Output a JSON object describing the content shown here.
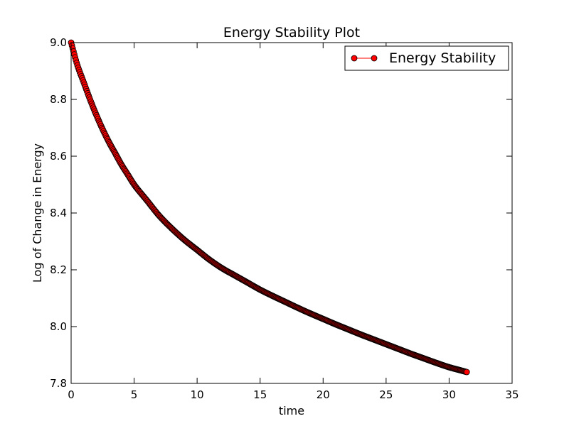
{
  "chart_data": {
    "type": "scatter",
    "title": "Energy Stability Plot",
    "xlabel": "time",
    "ylabel": "Log of Change in Energy",
    "xlim": [
      0,
      35
    ],
    "ylim": [
      7.8,
      9.0
    ],
    "xticks": [
      0,
      5,
      10,
      15,
      20,
      25,
      30,
      35
    ],
    "yticks": [
      7.8,
      8.0,
      8.2,
      8.4,
      8.6,
      8.8,
      9.0
    ],
    "xtick_labels": [
      "0",
      "5",
      "10",
      "15",
      "20",
      "25",
      "30",
      "35"
    ],
    "ytick_labels": [
      "7.8",
      "8.0",
      "8.2",
      "8.4",
      "8.6",
      "8.8",
      "9.0"
    ],
    "grid": false,
    "legend_position": "top-right",
    "series": [
      {
        "name": "Energy Stability",
        "marker": "circle",
        "line": true,
        "color": "#ff0000",
        "edge_color": "#000000",
        "x": [
          0.0,
          0.5,
          1.0,
          1.5,
          2.0,
          2.5,
          3.0,
          3.5,
          4.0,
          4.5,
          5.0,
          6.0,
          7.0,
          8.0,
          9.0,
          10.0,
          11.0,
          12.0,
          13.0,
          14.0,
          15.0,
          16.0,
          17.0,
          18.0,
          19.0,
          20.0,
          21.0,
          22.0,
          23.0,
          24.0,
          25.0,
          26.0,
          27.0,
          28.0,
          29.0,
          30.0,
          31.0,
          31.4
        ],
        "y": [
          9.0,
          8.92,
          8.86,
          8.8,
          8.745,
          8.695,
          8.65,
          8.61,
          8.57,
          8.535,
          8.5,
          8.445,
          8.39,
          8.345,
          8.305,
          8.27,
          8.235,
          8.205,
          8.18,
          8.155,
          8.13,
          8.108,
          8.087,
          8.066,
          8.046,
          8.027,
          8.008,
          7.99,
          7.972,
          7.955,
          7.938,
          7.921,
          7.904,
          7.888,
          7.872,
          7.857,
          7.845,
          7.84
        ]
      }
    ]
  }
}
